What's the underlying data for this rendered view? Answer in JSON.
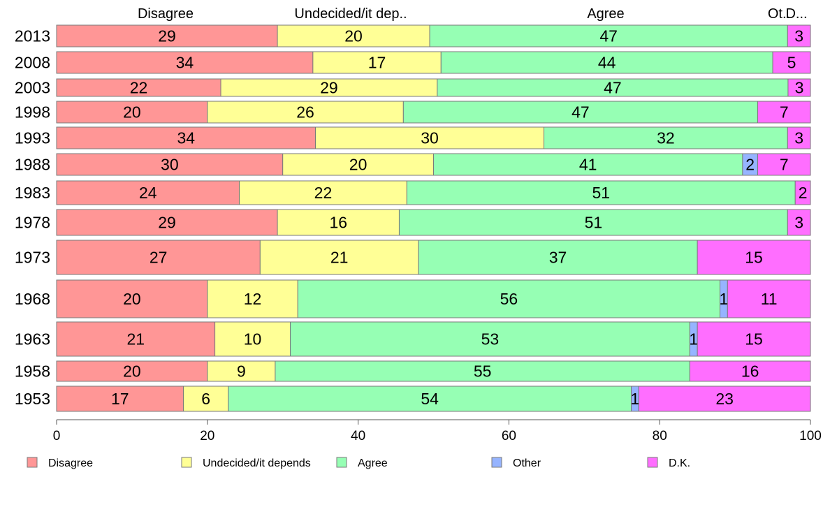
{
  "chart_data": {
    "type": "bar",
    "orientation": "horizontal",
    "stacked": true,
    "categories": [
      "2013",
      "2008",
      "2003",
      "1998",
      "1993",
      "1988",
      "1983",
      "1978",
      "1973",
      "1968",
      "1963",
      "1958",
      "1953"
    ],
    "series": [
      {
        "name": "Disagree",
        "color": "#ff9696",
        "values": [
          29,
          34,
          22,
          20,
          34,
          30,
          24,
          29,
          27,
          20,
          21,
          20,
          17
        ]
      },
      {
        "name": "Undecided/it depends",
        "color": "#ffff96",
        "values": [
          20,
          17,
          29,
          26,
          30,
          20,
          22,
          16,
          21,
          12,
          10,
          9,
          6
        ]
      },
      {
        "name": "Agree",
        "color": "#96ffb4",
        "values": [
          47,
          44,
          47,
          47,
          32,
          41,
          51,
          51,
          37,
          56,
          53,
          55,
          54
        ]
      },
      {
        "name": "Other",
        "color": "#96b4ff",
        "values": [
          0,
          0,
          0,
          0,
          0,
          2,
          0,
          0,
          0,
          1,
          1,
          0,
          1
        ]
      },
      {
        "name": "D.K.",
        "color": "#ff6eff",
        "values": [
          3,
          5,
          3,
          7,
          3,
          7,
          2,
          3,
          15,
          11,
          15,
          16,
          23
        ]
      }
    ],
    "row_totals": [
      99,
      100,
      101,
      100,
      99,
      100,
      99,
      99,
      100,
      100,
      100,
      100,
      101
    ],
    "top_labels": [
      "Disagree",
      "Undecided/it dep..",
      "Agree",
      "Ot..",
      "D..."
    ],
    "xlim": [
      0,
      100
    ],
    "xticks": [
      "0",
      "20",
      "40",
      "60",
      "80",
      "100"
    ],
    "xlabel": "",
    "ylabel": "",
    "title": "",
    "legend_position": "bottom",
    "grid": false
  }
}
